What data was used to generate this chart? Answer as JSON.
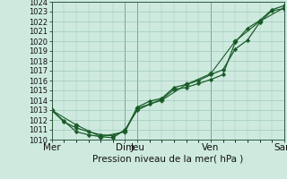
{
  "title": "Pression niveau de la mer( hPa )",
  "background_color": "#ceeadf",
  "grid_color": "#9ec8b8",
  "line_color": "#1a5c28",
  "ylim": [
    1010,
    1024
  ],
  "xtick_labels": [
    "Mer",
    "Dim",
    "Jeu",
    "Ven",
    "Sam"
  ],
  "xtick_positions": [
    0,
    6,
    7,
    13,
    19
  ],
  "series": [
    {
      "x": [
        0,
        1,
        2,
        3,
        4,
        5,
        6,
        7,
        8,
        9,
        10,
        11,
        12,
        13,
        14,
        15,
        16,
        17,
        18,
        19
      ],
      "y": [
        1013.0,
        1011.8,
        1011.2,
        1010.8,
        1010.5,
        1010.4,
        1010.9,
        1013.3,
        1013.9,
        1014.2,
        1015.3,
        1015.6,
        1016.0,
        1016.6,
        1017.1,
        1019.2,
        1020.1,
        1021.9,
        1023.1,
        1023.3
      ],
      "marker": "D",
      "markersize": 2.2,
      "linewidth": 0.9
    },
    {
      "x": [
        0,
        1,
        2,
        3,
        4,
        5,
        6,
        7,
        8,
        9,
        10,
        11,
        12,
        13,
        14,
        15,
        16,
        17,
        18,
        19
      ],
      "y": [
        1013.0,
        1011.9,
        1010.8,
        1010.5,
        1010.3,
        1010.2,
        1011.0,
        1013.0,
        1013.6,
        1014.1,
        1015.1,
        1015.3,
        1015.7,
        1016.1,
        1016.6,
        1019.9,
        1021.3,
        1022.1,
        1023.2,
        1023.6
      ],
      "marker": "D",
      "markersize": 2.2,
      "linewidth": 0.9
    },
    {
      "x": [
        0,
        2,
        4,
        6,
        7,
        9,
        11,
        13,
        15,
        17,
        19
      ],
      "y": [
        1013.0,
        1011.5,
        1010.3,
        1010.8,
        1013.2,
        1014.0,
        1015.6,
        1016.7,
        1020.0,
        1022.0,
        1023.4
      ],
      "marker": "P",
      "markersize": 3.5,
      "linewidth": 0.8
    }
  ],
  "vlines_x": [
    0,
    6,
    7,
    13,
    19
  ],
  "tick_fontsize": 6.0,
  "xlabel_fontsize": 7.5
}
